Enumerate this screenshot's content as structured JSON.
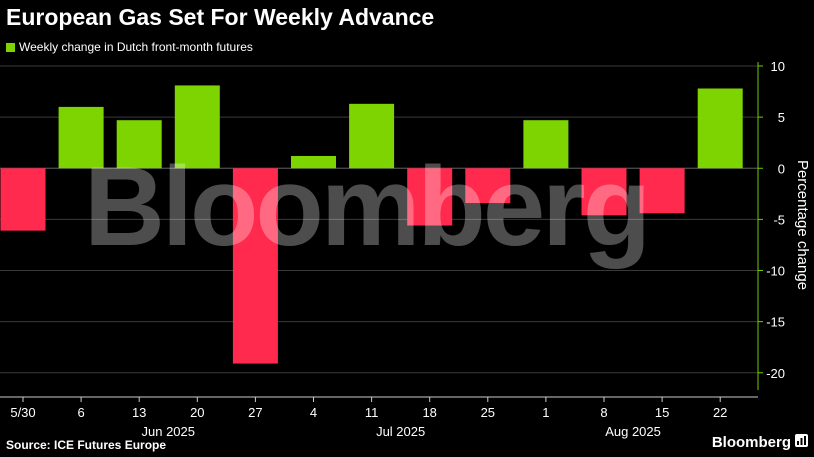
{
  "header": {
    "title": "European Gas Set For Weekly Advance"
  },
  "legend": {
    "label": "Weekly change in Dutch front-month futures"
  },
  "footer": {
    "source": "Source: ICE Futures Europe",
    "brand": "Bloomberg",
    "watermark": "Bloomberg"
  },
  "colors": {
    "positive": "#7ed400",
    "negative": "#ff2a4d",
    "background": "#000000",
    "grid": "#3a3a3a",
    "axis_green": "#6fce00"
  },
  "chart_data": {
    "type": "bar",
    "categories": [
      "5/30",
      "6",
      "13",
      "20",
      "27",
      "4",
      "11",
      "18",
      "25",
      "1",
      "8",
      "15",
      "22"
    ],
    "month_labels": [
      {
        "label": "Jun 2025",
        "start": 1,
        "end": 4
      },
      {
        "label": "Jul 2025",
        "start": 5,
        "end": 8
      },
      {
        "label": "Aug 2025",
        "start": 9,
        "end": 12
      }
    ],
    "series": [
      {
        "name": "Weekly change in Dutch front-month futures",
        "values": [
          -6.1,
          6.0,
          4.7,
          8.1,
          -19.1,
          1.2,
          6.3,
          -5.6,
          -3.4,
          4.7,
          -4.6,
          -4.4,
          7.8
        ]
      }
    ],
    "ylabel": "Percentage change",
    "ylim": [
      -21,
      10
    ],
    "yticks": [
      10,
      5,
      0,
      -5,
      -10,
      -15,
      -20
    ],
    "grid": true,
    "y_axis_position": "right",
    "legend_position": "top-left"
  }
}
